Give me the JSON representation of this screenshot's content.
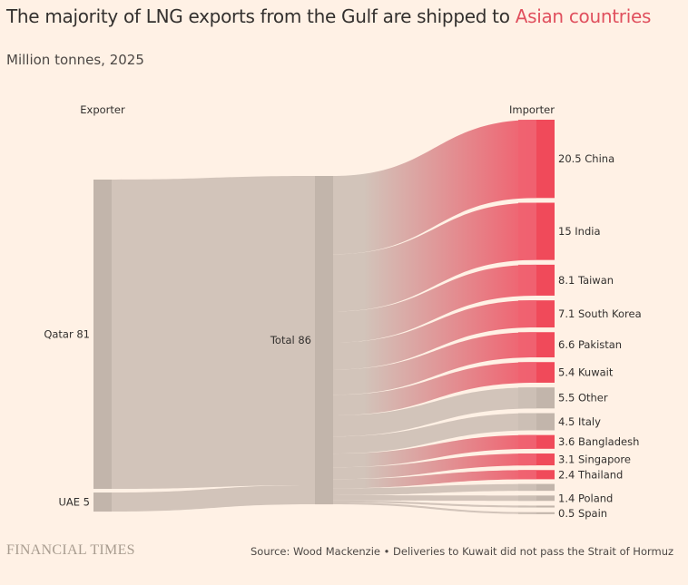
{
  "title": {
    "prefix": "The majority of LNG exports from the Gulf are shipped to ",
    "highlight": "Asian countries"
  },
  "subtitle": "Million tonnes, 2025",
  "footer": {
    "logo": "FINANCIAL TIMES",
    "source": "Source: Wood Mackenzie • Deliveries to Kuwait did not pass the Strait of Hormuz"
  },
  "chart_data": {
    "type": "sankey",
    "column_headers": {
      "left": "Exporter",
      "right": "Importer"
    },
    "colors": {
      "asian": "#f04a5a",
      "other": "#c2b5ab",
      "flow_other": "#d2c4ba"
    },
    "exporters": [
      {
        "name": "Qatar",
        "value": 81,
        "label": "Qatar 81"
      },
      {
        "name": "UAE",
        "value": 5,
        "label": "UAE 5"
      }
    ],
    "total": {
      "name": "Total",
      "value": 86,
      "label": "Total 86"
    },
    "importers": [
      {
        "name": "China",
        "value": 20.5,
        "label": "20.5 China",
        "asian": true
      },
      {
        "name": "India",
        "value": 15,
        "label": "15 India",
        "asian": true
      },
      {
        "name": "Taiwan",
        "value": 8.1,
        "label": "8.1 Taiwan",
        "asian": true
      },
      {
        "name": "South Korea",
        "value": 7.1,
        "label": "7.1 South Korea",
        "asian": true
      },
      {
        "name": "Pakistan",
        "value": 6.6,
        "label": "6.6 Pakistan",
        "asian": true
      },
      {
        "name": "Kuwait",
        "value": 5.4,
        "label": "5.4 Kuwait",
        "asian": true
      },
      {
        "name": "Other",
        "value": 5.5,
        "label": "5.5 Other",
        "asian": false
      },
      {
        "name": "Italy",
        "value": 4.5,
        "label": "4.5 Italy",
        "asian": false
      },
      {
        "name": "Bangladesh",
        "value": 3.6,
        "label": "3.6 Bangladesh",
        "asian": true
      },
      {
        "name": "Singapore",
        "value": 3.1,
        "label": "3.1 Singapore",
        "asian": true
      },
      {
        "name": "Thailand",
        "value": 2.4,
        "label": "2.4 Thailand",
        "asian": true
      },
      {
        "name": "",
        "value": 1.8,
        "label": "",
        "asian": false
      },
      {
        "name": "Poland",
        "value": 1.4,
        "label": "1.4 Poland",
        "asian": false
      },
      {
        "name": "",
        "value": 0.5,
        "label": "",
        "asian": false
      },
      {
        "name": "Spain",
        "value": 0.5,
        "label": "0.5 Spain",
        "asian": false
      }
    ]
  }
}
